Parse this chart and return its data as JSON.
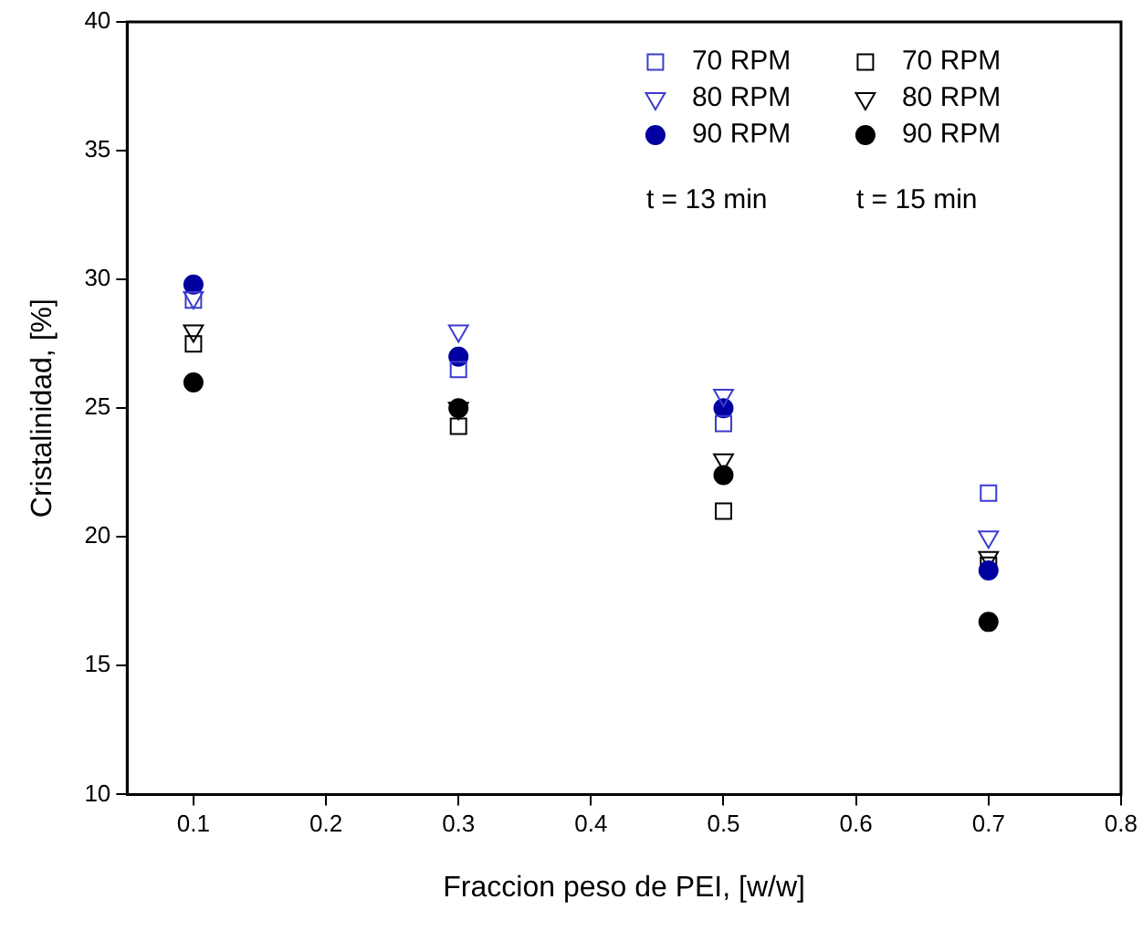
{
  "chart_data": {
    "type": "scatter",
    "xlabel": "Fraccion peso de PEI, [w/w]",
    "ylabel": "Cristalinidad, [%]",
    "x": [
      0.1,
      0.3,
      0.5,
      0.7
    ],
    "xlim": [
      0.05,
      0.8
    ],
    "xticks": [
      0.1,
      0.2,
      0.3,
      0.4,
      0.5,
      0.6,
      0.7,
      0.8
    ],
    "ylim": [
      10,
      40
    ],
    "yticks": [
      10,
      15,
      20,
      25,
      30,
      35,
      40
    ],
    "grid": false,
    "legend": "top right",
    "annotations": [
      "t = 13 min",
      "t = 15 min"
    ],
    "series": [
      {
        "name": "70 RPM",
        "color": "#3b3bd0",
        "marker": "square",
        "values": [
          29.2,
          26.5,
          24.4,
          21.7
        ]
      },
      {
        "name": "80 RPM",
        "color": "#3b3bd0",
        "marker": "triangle",
        "values": [
          29.3,
          28.0,
          25.5,
          20.0
        ]
      },
      {
        "name": "90 RPM",
        "color": "#0000a0",
        "marker": "circle",
        "values": [
          29.8,
          27.0,
          25.0,
          18.7
        ]
      },
      {
        "name": "70 RPM",
        "color": "#000000",
        "marker": "square",
        "values": [
          27.5,
          24.3,
          21.0,
          18.9
        ]
      },
      {
        "name": "80 RPM",
        "color": "#000000",
        "marker": "triangle",
        "values": [
          28.0,
          25.0,
          23.0,
          19.2
        ]
      },
      {
        "name": "90 RPM",
        "color": "#000000",
        "marker": "circle",
        "values": [
          26.0,
          25.0,
          22.4,
          16.7
        ]
      }
    ]
  }
}
